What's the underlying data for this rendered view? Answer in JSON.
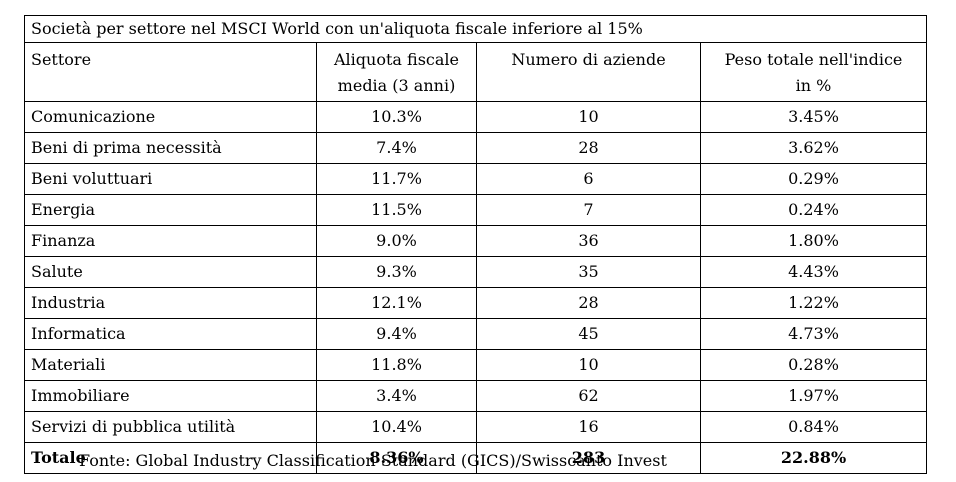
{
  "title": "Società per settore nel MSCI World con un'aliquota fiscale inferiore al 15%",
  "headers": {
    "sector": "Settore",
    "tax_rate_line1": "Aliquota fiscale",
    "tax_rate_line2": "media (3 anni)",
    "companies": "Numero di aziende",
    "weight_line1": "Peso totale nell'indice",
    "weight_line2": "in %"
  },
  "rows": [
    {
      "sector": "Comunicazione",
      "tax_rate": "10.3%",
      "companies": "10",
      "weight": "3.45%"
    },
    {
      "sector": "Beni di prima necessità",
      "tax_rate": "7.4%",
      "companies": "28",
      "weight": "3.62%"
    },
    {
      "sector": "Beni voluttuari",
      "tax_rate": "11.7%",
      "companies": "6",
      "weight": "0.29%"
    },
    {
      "sector": "Energia",
      "tax_rate": "11.5%",
      "companies": "7",
      "weight": "0.24%"
    },
    {
      "sector": "Finanza",
      "tax_rate": "9.0%",
      "companies": "36",
      "weight": "1.80%"
    },
    {
      "sector": "Salute",
      "tax_rate": "9.3%",
      "companies": "35",
      "weight": "4.43%"
    },
    {
      "sector": "Industria",
      "tax_rate": "12.1%",
      "companies": "28",
      "weight": "1.22%"
    },
    {
      "sector": "Informatica",
      "tax_rate": "9.4%",
      "companies": "45",
      "weight": "4.73%"
    },
    {
      "sector": "Materiali",
      "tax_rate": "11.8%",
      "companies": "10",
      "weight": "0.28%"
    },
    {
      "sector": "Immobiliare",
      "tax_rate": "3.4%",
      "companies": "62",
      "weight": "1.97%"
    },
    {
      "sector": "Servizi di pubblica utilità",
      "tax_rate": "10.4%",
      "companies": "16",
      "weight": "0.84%"
    }
  ],
  "total": {
    "label": "Totale",
    "tax_rate": "8.36%",
    "companies": "283",
    "weight": "22.88%"
  },
  "source": "Fonte: Global Industry Classification Standard (GICS)/Swisscanto Invest"
}
